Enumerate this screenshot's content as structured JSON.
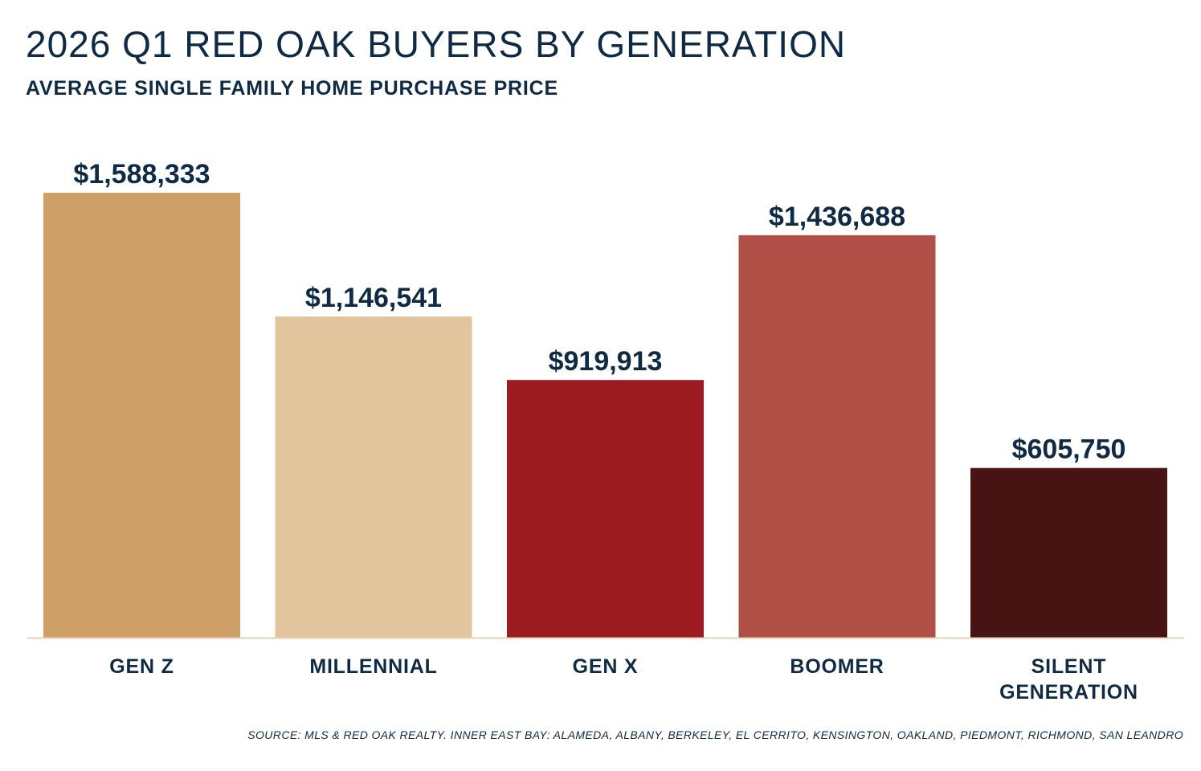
{
  "header": {
    "title": "2026 Q1 RED OAK BUYERS BY GENERATION",
    "subtitle": "AVERAGE SINGLE FAMILY HOME PURCHASE PRICE"
  },
  "footer": {
    "source": "SOURCE: MLS & RED OAK REALTY.  INNER EAST BAY: ALAMEDA, ALBANY, BERKELEY, EL CERRITO, KENSINGTON, OAKLAND, PIEDMONT, RICHMOND, SAN LEANDRO"
  },
  "colors": {
    "text": "#0f2a44",
    "axis": "#e6d3b4"
  },
  "chart_data": {
    "type": "bar",
    "title": "2026 Q1 RED OAK BUYERS BY GENERATION",
    "subtitle": "AVERAGE SINGLE FAMILY HOME PURCHASE PRICE",
    "categories": [
      "GEN Z",
      "MILLENNIAL",
      "GEN X",
      "BOOMER",
      "SILENT\nGENERATION"
    ],
    "values": [
      1588333,
      1146541,
      919913,
      1436688,
      605750
    ],
    "value_labels": [
      "$1,588,333",
      "$1,146,541",
      "$919,913",
      "$1,436,688",
      "$605,750"
    ],
    "bar_colors": [
      "#cf9f68",
      "#e2c49d",
      "#9c1c22",
      "#b04f45",
      "#471313"
    ],
    "xlabel": "",
    "ylabel": "",
    "ylim": [
      0,
      1588333
    ],
    "grid": false,
    "legend": "none"
  }
}
